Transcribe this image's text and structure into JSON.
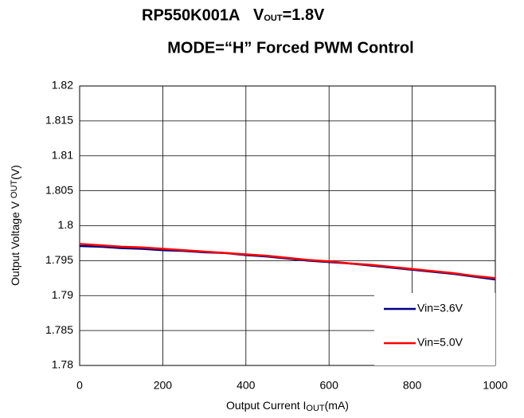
{
  "chart_data": {
    "type": "line",
    "title": "RP550K001A",
    "condition": {
      "symbol": "V",
      "subscript": "OUT",
      "value": "=1.8V"
    },
    "subtitle": "MODE=“H” Forced PWM Control",
    "xlabel": {
      "text": "Output Current I",
      "subscript": "OUT",
      "unit": "(mA)"
    },
    "ylabel": {
      "text": "Output Voltage V ",
      "subscript": "OUT",
      "unit": "(V)"
    },
    "x": [
      0,
      50,
      100,
      150,
      200,
      250,
      300,
      350,
      400,
      450,
      500,
      550,
      600,
      650,
      700,
      750,
      800,
      850,
      900,
      950,
      1000
    ],
    "series": [
      {
        "name": "Vin=3.6V",
        "color": "#000080",
        "values": [
          1.7971,
          1.797,
          1.7968,
          1.7967,
          1.7965,
          1.7964,
          1.7962,
          1.7961,
          1.7958,
          1.7956,
          1.7953,
          1.795,
          1.7948,
          1.7946,
          1.7943,
          1.794,
          1.7937,
          1.7934,
          1.7931,
          1.7927,
          1.7923
        ]
      },
      {
        "name": "Vin=5.0V",
        "color": "#ff0000",
        "values": [
          1.7974,
          1.7972,
          1.797,
          1.7969,
          1.7967,
          1.7965,
          1.7963,
          1.7961,
          1.7959,
          1.7957,
          1.7954,
          1.7951,
          1.7949,
          1.7946,
          1.7944,
          1.7941,
          1.7938,
          1.7935,
          1.7932,
          1.7928,
          1.7925
        ]
      }
    ],
    "xlim": [
      0,
      1000
    ],
    "xticks": [
      0,
      200,
      400,
      600,
      800,
      1000
    ],
    "ylim": [
      1.78,
      1.82
    ],
    "yticks": [
      1.78,
      1.785,
      1.79,
      1.795,
      1.8,
      1.805,
      1.81,
      1.815,
      1.82
    ],
    "grid": true,
    "legend": "lower right"
  }
}
